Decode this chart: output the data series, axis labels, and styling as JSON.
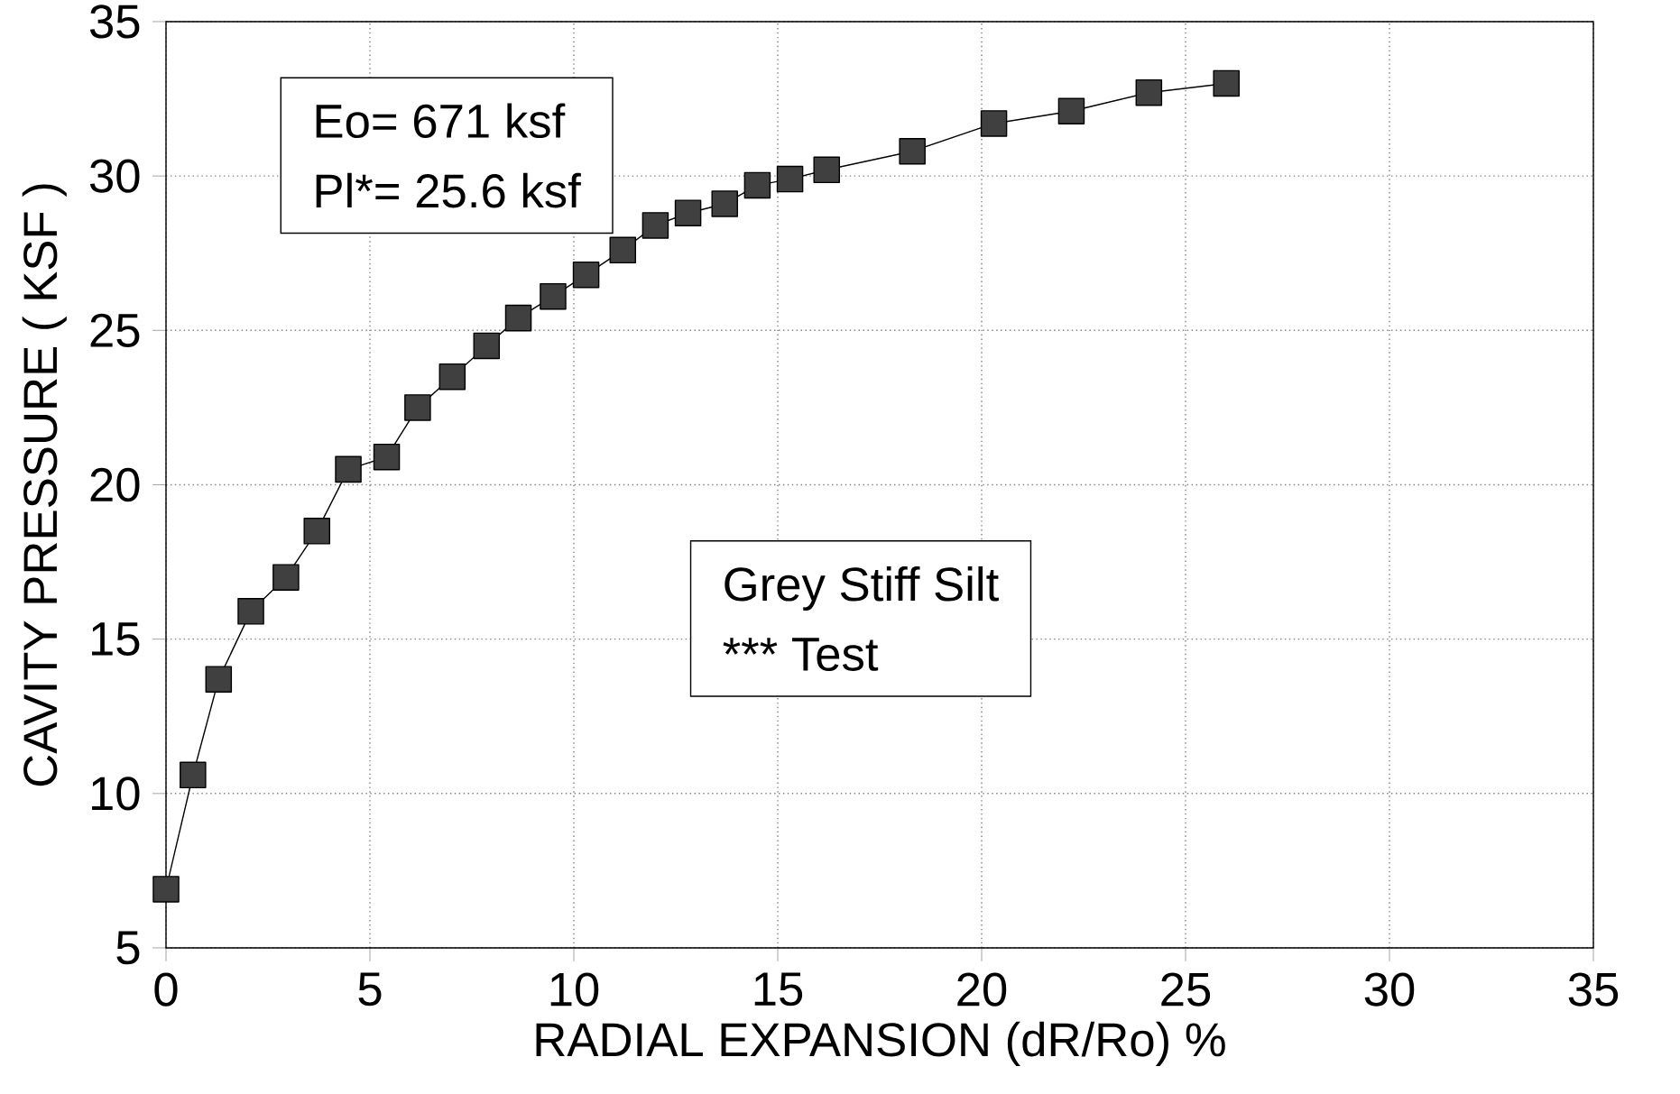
{
  "chart_data": {
    "type": "line",
    "xlabel": "RADIAL EXPANSION (dR/Ro) %",
    "ylabel": "CAVITY PRESSURE ( KSF )",
    "x": [
      0,
      0.66,
      1.29,
      2.08,
      2.94,
      3.7,
      4.47,
      5.41,
      6.17,
      7.02,
      7.86,
      8.64,
      9.49,
      10.3,
      11.2,
      12.0,
      12.8,
      13.7,
      14.5,
      15.3,
      16.2,
      18.3,
      20.3,
      22.2,
      24.1,
      26.0
    ],
    "series": [
      {
        "color": "#404040",
        "values": [
          6.9,
          10.6,
          13.7,
          15.9,
          17.0,
          18.5,
          20.5,
          20.9,
          22.5,
          23.5,
          24.5,
          25.4,
          26.1,
          26.8,
          27.6,
          28.4,
          28.8,
          29.1,
          29.7,
          29.9,
          30.2,
          30.8,
          31.7,
          32.1,
          32.7,
          33.0
        ]
      }
    ],
    "xlim": [
      0,
      35
    ],
    "ylim": [
      5,
      35
    ],
    "xticks": [
      0,
      5,
      10,
      15,
      20,
      25,
      30,
      35
    ],
    "yticks": [
      5,
      10,
      15,
      20,
      25,
      30,
      35
    ],
    "grid": true,
    "marker": "square",
    "line_style": "solid",
    "annotations": [
      "Eo= 671 ksf",
      "Pl*= 25.6 ksf",
      "Grey Stiff Silt",
      "*** Test"
    ]
  }
}
